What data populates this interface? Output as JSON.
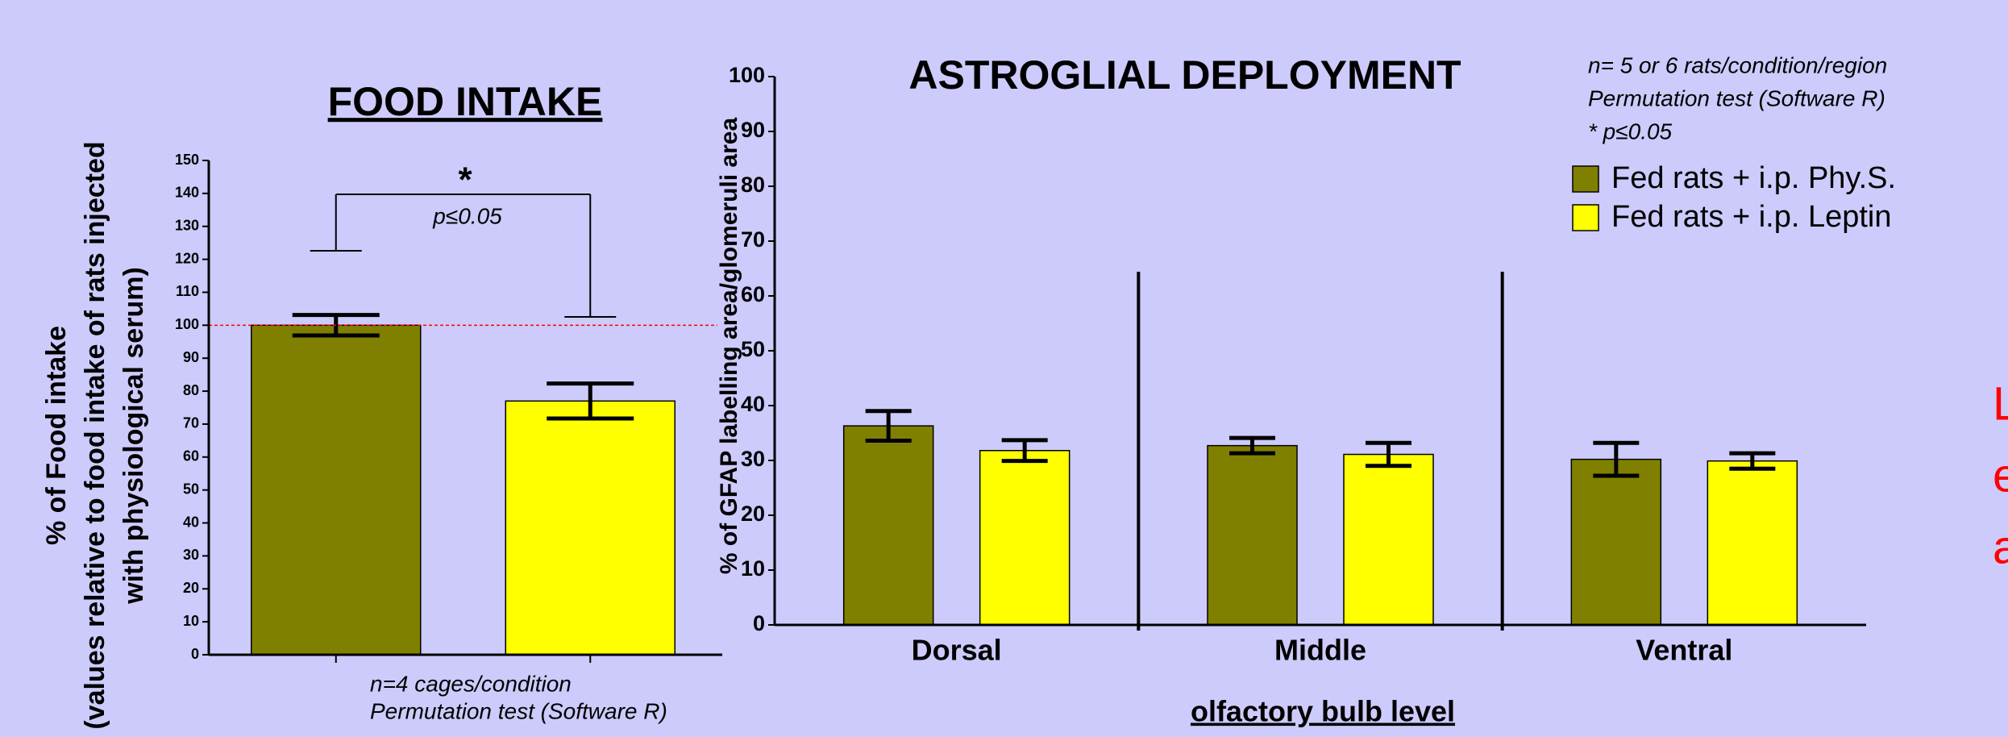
{
  "chart_data": [
    {
      "type": "bar",
      "title": "FOOD INTAKE",
      "ylabel": [
        "% of Food intake",
        "(values relative to food intake of rats injected",
        "with physiological serum)"
      ],
      "categories": [
        null,
        null
      ],
      "values": [
        100,
        77
      ],
      "errors": [
        3.1,
        5.3
      ],
      "colors": [
        "#808000",
        "#ffff00"
      ],
      "ylim": [
        0,
        150
      ],
      "yticks": [
        0,
        10,
        20,
        30,
        40,
        50,
        60,
        70,
        80,
        90,
        100,
        110,
        120,
        130,
        140,
        150
      ],
      "reference_line": 100,
      "reference_color": "#ff0000",
      "annotations": [
        "*",
        "p≤0.05"
      ],
      "notes": [
        "n=4 cages/condition",
        "Permutation test (Software R)"
      ]
    },
    {
      "type": "grouped_bar",
      "title": "ASTROGLIAL DEPLOYMENT",
      "xlabel": "olfactory bulb level",
      "ylabel": "% of GFAP labelling area/glomeruli area",
      "categories": [
        "Dorsal",
        "Middle",
        "Ventral"
      ],
      "series": [
        {
          "name": "Fed rats + i.p. Phy.S.",
          "color": "#808000",
          "values": [
            36.3,
            32.7,
            30.2
          ],
          "errors": [
            2.7,
            1.4,
            3.0
          ]
        },
        {
          "name": "Fed rats + i.p. Leptin",
          "color": "#ffff00",
          "values": [
            31.8,
            31.1,
            29.9
          ],
          "errors": [
            1.9,
            2.1,
            1.4
          ]
        }
      ],
      "ylim": [
        0,
        100
      ],
      "yticks": [
        0,
        10,
        20,
        30,
        40,
        50,
        60,
        70,
        80,
        90,
        100
      ],
      "notes": [
        "n=  5 or 6 rats/condition/region",
        "Permutation test (Software R)",
        "* p≤0.05"
      ],
      "legend": "upper right"
    }
  ],
  "side_text": [
    "L",
    "e",
    "a"
  ]
}
